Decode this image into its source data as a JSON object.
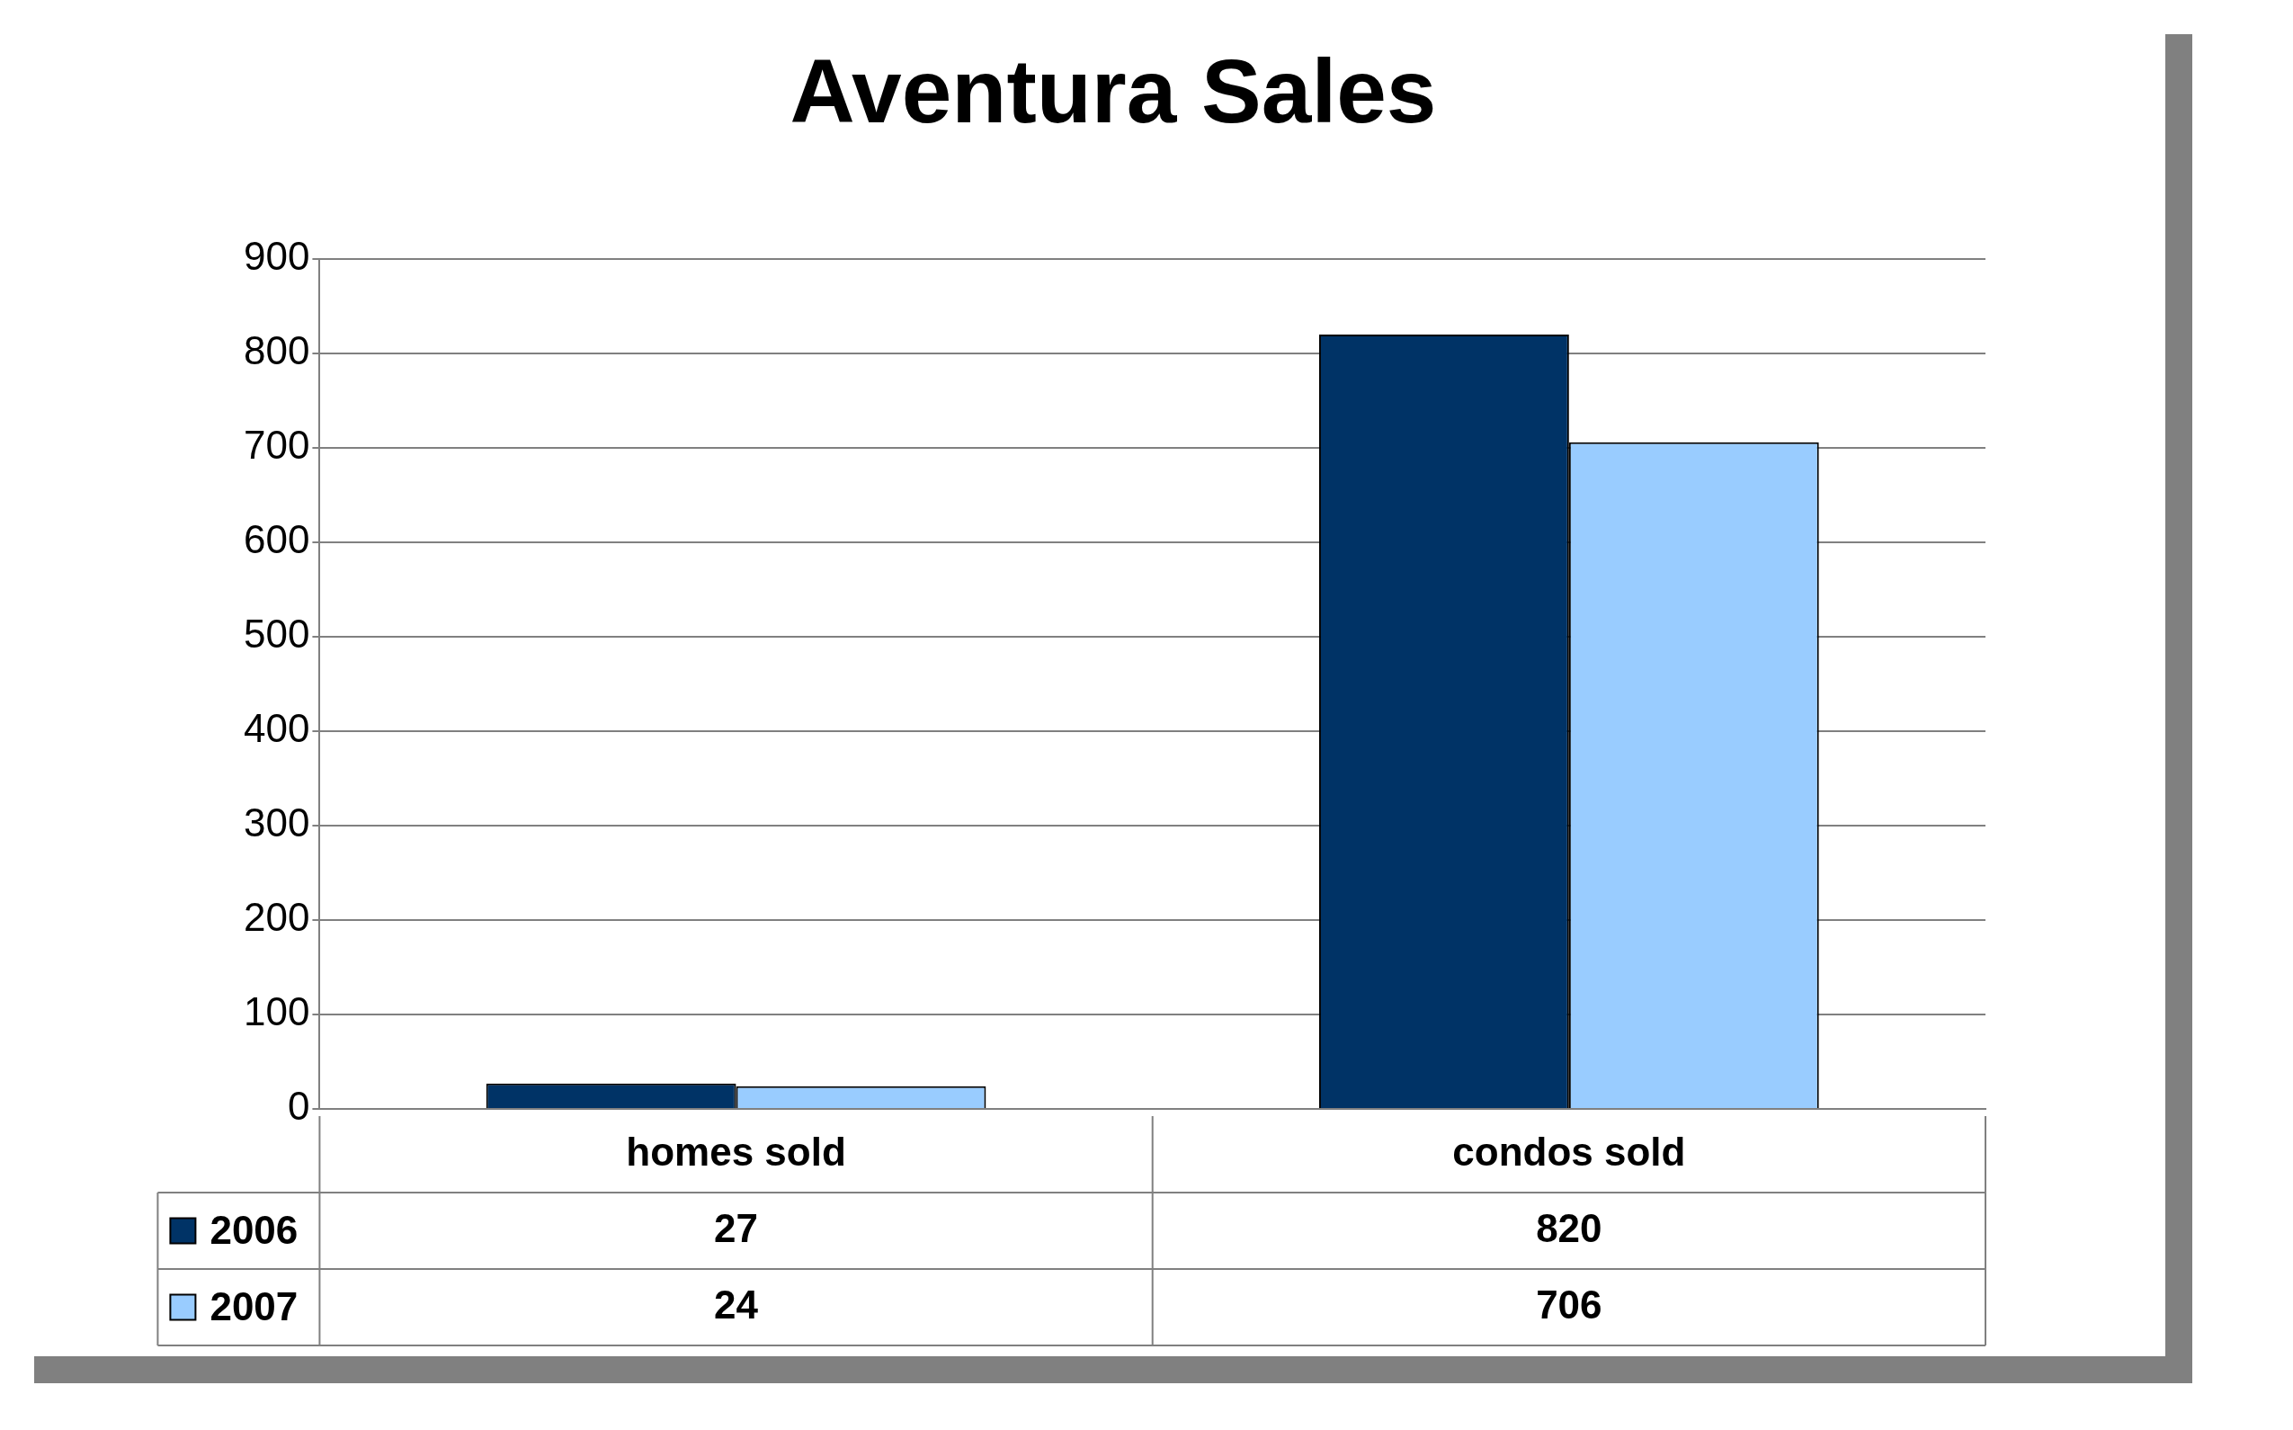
{
  "chart_data": {
    "type": "bar",
    "title": "Aventura Sales",
    "categories": [
      "homes sold",
      "condos sold"
    ],
    "series": [
      {
        "name": "2006",
        "color": "#003366",
        "values": [
          27,
          820
        ]
      },
      {
        "name": "2007",
        "color": "#99ccff",
        "values": [
          24,
          706
        ]
      }
    ],
    "ylim": [
      0,
      900
    ],
    "yticks": [
      0,
      100,
      200,
      300,
      400,
      500,
      600,
      700,
      800,
      900
    ],
    "grid": "y",
    "legend": "bottom left",
    "data_labels": true
  }
}
